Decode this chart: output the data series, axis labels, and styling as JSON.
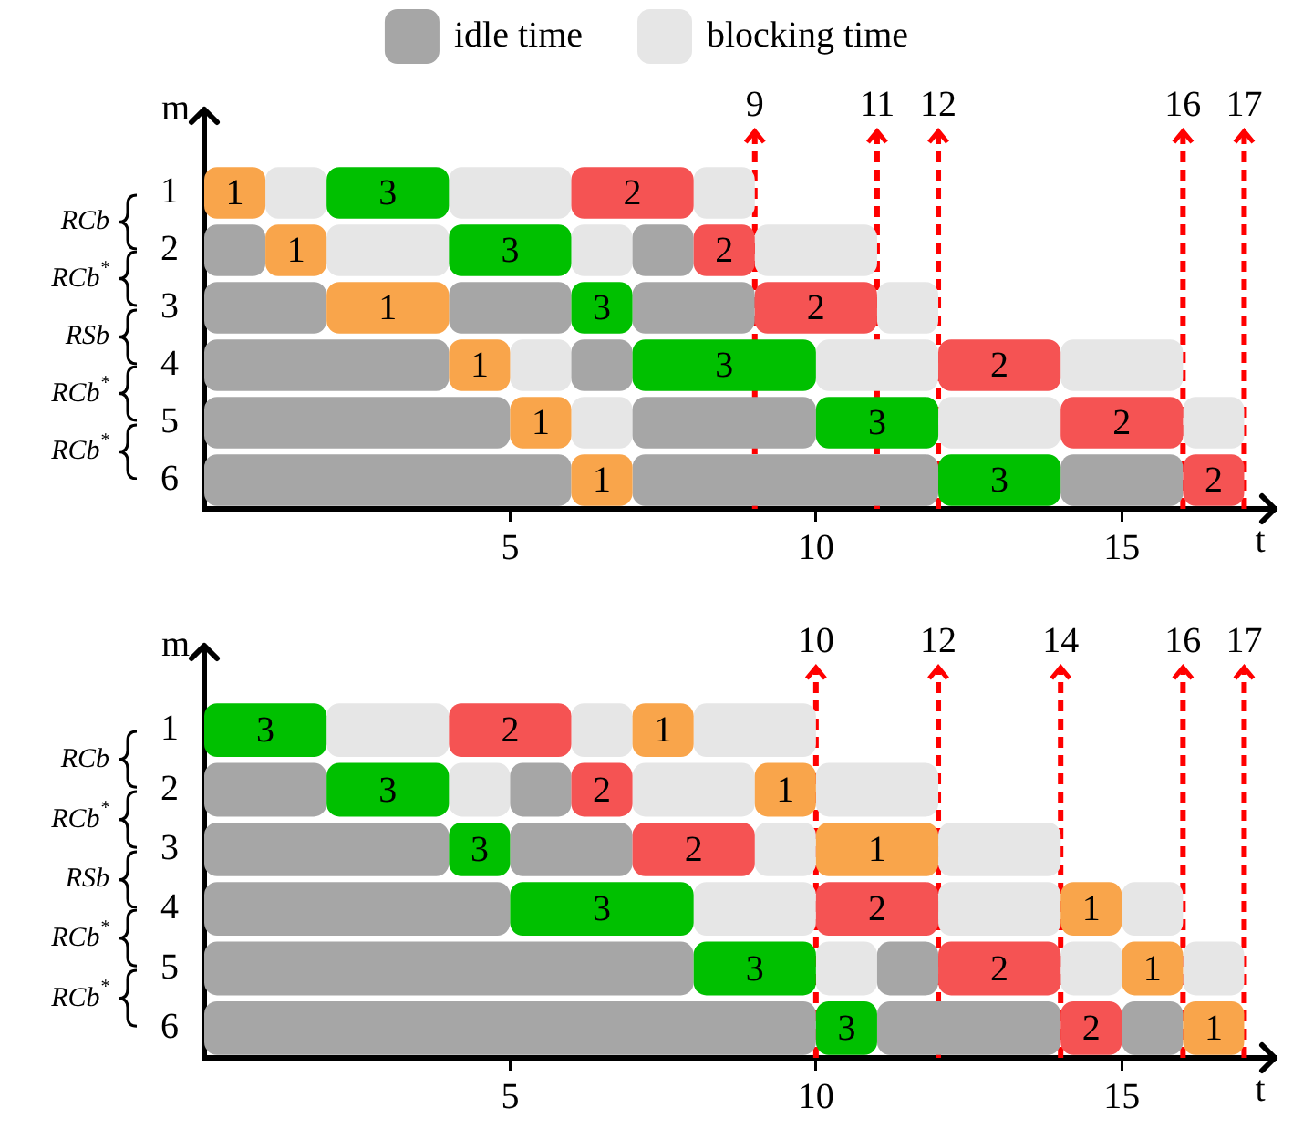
{
  "chart_data": [
    {
      "type": "bar",
      "orientation": "horizontal",
      "legend": "top",
      "xlabel": "t",
      "ylabel": "m",
      "categories": [
        "1",
        "2",
        "3",
        "4",
        "5",
        "6"
      ],
      "xlim": [
        0,
        17.5
      ],
      "xticks": [
        5,
        10,
        15
      ],
      "grid": false,
      "series": [
        {
          "color": "#f9a54b",
          "base": [
            0,
            1,
            2,
            4,
            5,
            6
          ],
          "values": [
            1,
            1,
            2,
            1,
            1,
            1
          ]
        },
        {
          "color": "#00c000",
          "base": [
            2,
            4,
            6,
            7,
            10,
            12
          ],
          "values": [
            2,
            2,
            1,
            3,
            2,
            2
          ]
        },
        {
          "color": "#f55353",
          "base": [
            6,
            8,
            9,
            12,
            14,
            16
          ],
          "values": [
            2,
            1,
            2,
            2,
            2,
            1
          ]
        },
        {
          "name": "idle time",
          "color": "#a6a6a6",
          "base": [
            null,
            0,
            0,
            0,
            0,
            0
          ],
          "values": [
            null,
            1,
            2,
            4,
            5,
            6
          ]
        },
        {
          "color": "#a6a6a6",
          "base": [
            null,
            7,
            4,
            6,
            7,
            7
          ],
          "values": [
            null,
            1,
            2,
            1,
            3,
            5
          ]
        },
        {
          "color": "#a6a6a6",
          "base": [
            null,
            null,
            7,
            null,
            null,
            14
          ],
          "values": [
            null,
            null,
            2,
            null,
            null,
            2
          ]
        },
        {
          "name": "blocking time",
          "color": "#e6e6e6",
          "base": [
            1,
            2,
            11,
            5,
            6,
            null
          ],
          "values": [
            1,
            2,
            1,
            1,
            1,
            null
          ]
        },
        {
          "color": "#e6e6e6",
          "base": [
            4,
            6,
            null,
            10,
            12,
            null
          ],
          "values": [
            2,
            1,
            null,
            2,
            2,
            null
          ]
        },
        {
          "color": "#e6e6e6",
          "base": [
            8,
            9,
            null,
            14,
            16,
            null
          ],
          "values": [
            1,
            2,
            null,
            2,
            1,
            null
          ]
        }
      ],
      "ref_lines": [
        {
          "axis": "x",
          "value": 9,
          "label": "9",
          "color": "#ff0000",
          "line_style": "dashed"
        },
        {
          "axis": "x",
          "value": 11,
          "label": "11",
          "color": "#ff0000",
          "line_style": "dashed"
        },
        {
          "axis": "x",
          "value": 12,
          "label": "12",
          "color": "#ff0000",
          "line_style": "dashed"
        },
        {
          "axis": "x",
          "value": 16,
          "label": "16",
          "color": "#ff0000",
          "line_style": "dashed"
        },
        {
          "axis": "x",
          "value": 17,
          "label": "17",
          "color": "#ff0000",
          "line_style": "dashed"
        }
      ],
      "annotations": [
        "RCb",
        "RCb$^{*}$",
        "RSb",
        "RCb$^{*}$",
        "RCb$^{*}$",
        {
          "text": "1",
          "x": 0.5,
          "y": "1"
        },
        {
          "text": "1",
          "x": 1.5,
          "y": "2"
        },
        {
          "text": "1",
          "x": 3,
          "y": "3"
        },
        {
          "text": "1",
          "x": 4.5,
          "y": "4"
        },
        {
          "text": "1",
          "x": 5.5,
          "y": "5"
        },
        {
          "text": "1",
          "x": 6.5,
          "y": "6"
        },
        {
          "text": "3",
          "x": 3,
          "y": "1"
        },
        {
          "text": "3",
          "x": 5,
          "y": "2"
        },
        {
          "text": "3",
          "x": 6.5,
          "y": "3"
        },
        {
          "text": "3",
          "x": 8.5,
          "y": "4"
        },
        {
          "text": "3",
          "x": 11,
          "y": "5"
        },
        {
          "text": "3",
          "x": 13,
          "y": "6"
        },
        {
          "text": "2",
          "x": 7,
          "y": "1"
        },
        {
          "text": "2",
          "x": 8.5,
          "y": "2"
        },
        {
          "text": "2",
          "x": 10,
          "y": "3"
        },
        {
          "text": "2",
          "x": 13,
          "y": "4"
        },
        {
          "text": "2",
          "x": 15,
          "y": "5"
        },
        {
          "text": "2",
          "x": 16.5,
          "y": "6"
        }
      ]
    },
    {
      "type": "bar",
      "orientation": "horizontal",
      "xlabel": "t",
      "ylabel": "m",
      "categories": [
        "1",
        "2",
        "3",
        "4",
        "5",
        "6"
      ],
      "xlim": [
        0,
        17.5
      ],
      "xticks": [
        5,
        10,
        15
      ],
      "grid": false,
      "series": [
        {
          "color": "#00c000",
          "base": [
            0,
            2,
            4,
            5,
            8,
            10
          ],
          "values": [
            2,
            2,
            1,
            3,
            2,
            1
          ]
        },
        {
          "color": "#f55353",
          "base": [
            4,
            6,
            7,
            10,
            12,
            14
          ],
          "values": [
            2,
            1,
            2,
            2,
            2,
            1
          ]
        },
        {
          "color": "#f9a54b",
          "base": [
            7,
            9,
            10,
            14,
            15,
            16
          ],
          "values": [
            1,
            1,
            2,
            1,
            1,
            1
          ]
        },
        {
          "color": "#a6a6a6",
          "base": [
            null,
            0,
            0,
            0,
            0,
            0
          ],
          "values": [
            null,
            2,
            4,
            5,
            8,
            10
          ]
        },
        {
          "color": "#a6a6a6",
          "base": [
            null,
            5,
            5,
            null,
            11,
            11
          ],
          "values": [
            null,
            1,
            2,
            null,
            1,
            3
          ]
        },
        {
          "color": "#a6a6a6",
          "base": [
            null,
            null,
            null,
            null,
            null,
            15
          ],
          "values": [
            null,
            null,
            null,
            null,
            null,
            1
          ]
        },
        {
          "color": "#e6e6e6",
          "base": [
            2,
            4,
            9,
            8,
            10,
            null
          ],
          "values": [
            2,
            1,
            1,
            2,
            1,
            null
          ]
        },
        {
          "color": "#e6e6e6",
          "base": [
            6,
            7,
            12,
            12,
            14,
            null
          ],
          "values": [
            1,
            2,
            2,
            2,
            1,
            null
          ]
        },
        {
          "color": "#e6e6e6",
          "base": [
            8,
            10,
            null,
            15,
            16,
            null
          ],
          "values": [
            2,
            2,
            null,
            1,
            1,
            null
          ]
        }
      ],
      "ref_lines": [
        {
          "axis": "x",
          "value": 10,
          "label": "10",
          "color": "#ff0000",
          "line_style": "dashed"
        },
        {
          "axis": "x",
          "value": 12,
          "label": "12",
          "color": "#ff0000",
          "line_style": "dashed"
        },
        {
          "axis": "x",
          "value": 14,
          "label": "14",
          "color": "#ff0000",
          "line_style": "dashed"
        },
        {
          "axis": "x",
          "value": 16,
          "label": "16",
          "color": "#ff0000",
          "line_style": "dashed"
        },
        {
          "axis": "x",
          "value": 17,
          "label": "17",
          "color": "#ff0000",
          "line_style": "dashed"
        }
      ],
      "annotations": [
        "RCb",
        "RCb$^{*}$",
        "RSb",
        "RCb$^{*}$",
        "RCb$^{*}$",
        {
          "text": "3",
          "x": 1,
          "y": "1"
        },
        {
          "text": "3",
          "x": 3,
          "y": "2"
        },
        {
          "text": "3",
          "x": 4.5,
          "y": "3"
        },
        {
          "text": "3",
          "x": 6.5,
          "y": "4"
        },
        {
          "text": "3",
          "x": 9,
          "y": "5"
        },
        {
          "text": "3",
          "x": 10.5,
          "y": "6"
        },
        {
          "text": "2",
          "x": 5,
          "y": "1"
        },
        {
          "text": "2",
          "x": 6.5,
          "y": "2"
        },
        {
          "text": "2",
          "x": 8,
          "y": "3"
        },
        {
          "text": "2",
          "x": 11,
          "y": "4"
        },
        {
          "text": "2",
          "x": 13,
          "y": "5"
        },
        {
          "text": "2",
          "x": 14.5,
          "y": "6"
        },
        {
          "text": "1",
          "x": 7.5,
          "y": "1"
        },
        {
          "text": "1",
          "x": 9.5,
          "y": "2"
        },
        {
          "text": "1",
          "x": 11,
          "y": "3"
        },
        {
          "text": "1",
          "x": 14.5,
          "y": "4"
        },
        {
          "text": "1",
          "x": 15.5,
          "y": "5"
        },
        {
          "text": "1",
          "x": 16.5,
          "y": "6"
        }
      ]
    }
  ]
}
